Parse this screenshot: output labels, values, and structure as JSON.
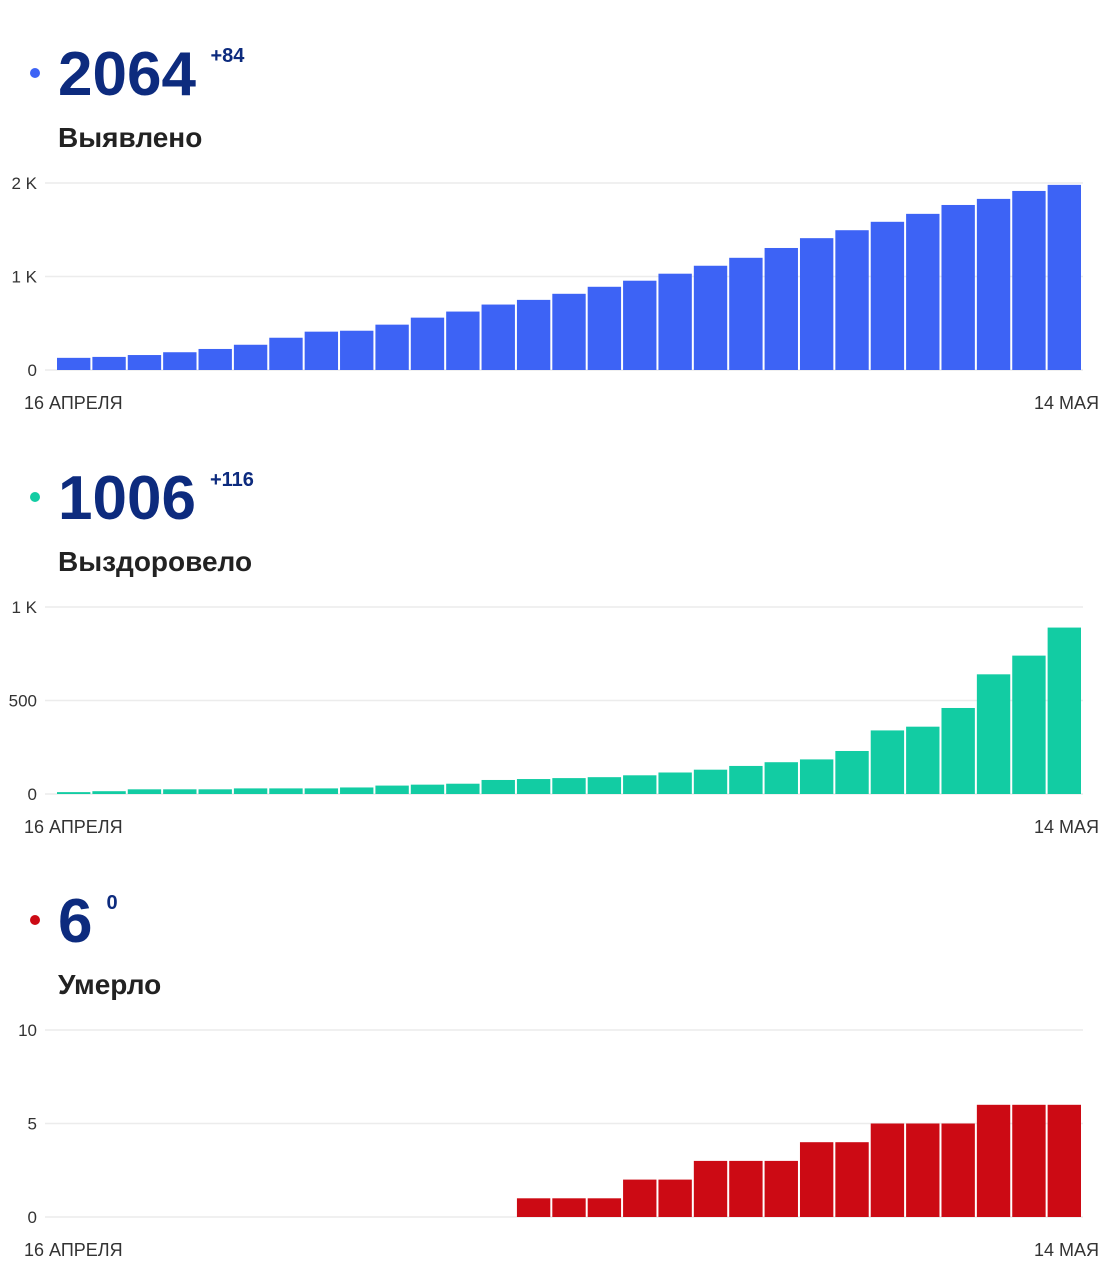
{
  "chart_data": [
    {
      "type": "bar",
      "total": 2064,
      "delta": "+84",
      "title": "Выявлено",
      "color": "#3d63f5",
      "categories": [
        "16 АПРЕЛЯ",
        null,
        null,
        null,
        null,
        null,
        null,
        null,
        null,
        null,
        null,
        null,
        null,
        null,
        null,
        null,
        null,
        null,
        null,
        null,
        null,
        null,
        null,
        null,
        null,
        null,
        null,
        null,
        "14 МАЯ"
      ],
      "values": [
        130,
        140,
        160,
        190,
        225,
        270,
        345,
        410,
        420,
        485,
        560,
        625,
        700,
        750,
        815,
        890,
        955,
        1030,
        1115,
        1200,
        1305,
        1410,
        1495,
        1585,
        1670,
        1765,
        1830,
        1915,
        1980
      ],
      "ylim": [
        0,
        2000
      ],
      "yticks": [
        0,
        {
          "value": 1000,
          "label": "1 K"
        },
        {
          "value": 2000,
          "label": "2 K"
        }
      ],
      "grid": true
    },
    {
      "type": "bar",
      "total": 1006,
      "delta": "+116",
      "title": "Выздоровело",
      "color": "#12cca3",
      "categories": [
        "16 АПРЕЛЯ",
        null,
        null,
        null,
        null,
        null,
        null,
        null,
        null,
        null,
        null,
        null,
        null,
        null,
        null,
        null,
        null,
        null,
        null,
        null,
        null,
        null,
        null,
        null,
        null,
        null,
        null,
        null,
        "14 МАЯ"
      ],
      "values": [
        10,
        15,
        25,
        25,
        25,
        30,
        30,
        30,
        35,
        45,
        50,
        55,
        75,
        80,
        85,
        90,
        100,
        115,
        130,
        150,
        170,
        185,
        230,
        340,
        360,
        460,
        640,
        740,
        890
      ],
      "ylim": [
        0,
        1000
      ],
      "yticks": [
        0,
        500,
        {
          "value": 1000,
          "label": "1 K"
        }
      ],
      "grid": true
    },
    {
      "type": "bar",
      "total": 6,
      "delta": 0,
      "title": "Умерло",
      "color": "#cc0a14",
      "categories": [
        "16 АПРЕЛЯ",
        null,
        null,
        null,
        null,
        null,
        null,
        null,
        null,
        null,
        null,
        null,
        null,
        null,
        null,
        null,
        null,
        null,
        null,
        null,
        null,
        null,
        null,
        null,
        null,
        null,
        null,
        null,
        "14 МАЯ"
      ],
      "values": [
        0,
        0,
        0,
        0,
        0,
        0,
        0,
        0,
        0,
        0,
        0,
        0,
        0,
        1,
        1,
        1,
        2,
        2,
        3,
        3,
        3,
        4,
        4,
        5,
        5,
        5,
        6,
        6,
        6
      ],
      "ylim": [
        0,
        10
      ],
      "yticks": [
        0,
        5,
        10
      ],
      "grid": true
    }
  ]
}
